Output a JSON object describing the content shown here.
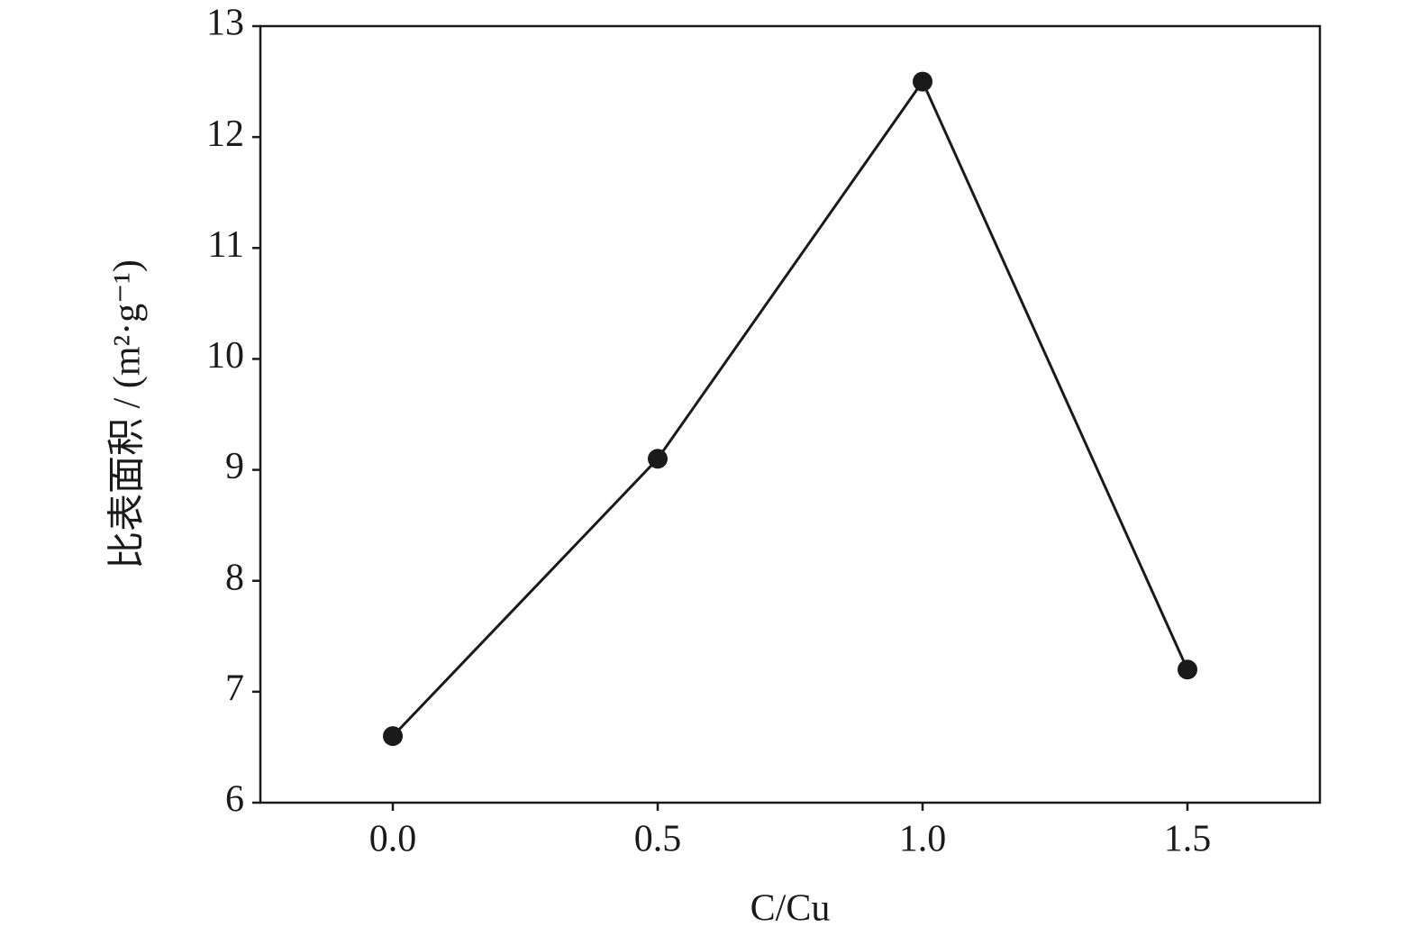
{
  "chart_data": {
    "type": "line",
    "x": [
      0,
      0.5,
      1.0,
      1.5
    ],
    "values": [
      6.6,
      9.1,
      12.5,
      7.2
    ],
    "color": "#1a1a1a",
    "xlabel": "C/Cu",
    "ylabel": "比表面积 / (m²·g⁻¹)",
    "xlim": [
      -0.25,
      1.75
    ],
    "ylim": [
      6,
      13
    ],
    "xticks": [
      {
        "value": 0,
        "label": "0.0"
      },
      0.5,
      {
        "value": 1,
        "label": "1.0"
      },
      1.5
    ],
    "yticks": [
      6,
      7,
      8,
      9,
      10,
      11,
      12,
      13
    ],
    "grid": false
  }
}
